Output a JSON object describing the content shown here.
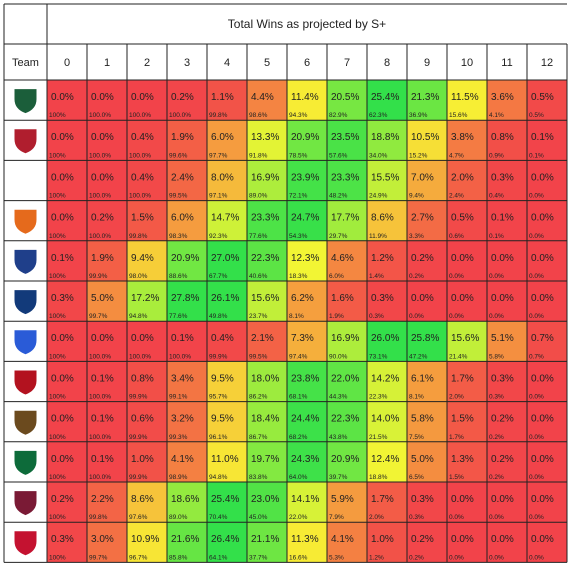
{
  "chart_data": {
    "type": "heatmap",
    "title": "Total Wins as projected by S+",
    "row_header": "Team",
    "columns": [
      "0",
      "1",
      "2",
      "3",
      "4",
      "5",
      "6",
      "7",
      "8",
      "9",
      "10",
      "11",
      "12"
    ],
    "rows": [
      {
        "logo": "ohio-logo",
        "logo_color": "#1b5e3a",
        "pct": [
          "0.0%",
          "0.0%",
          "0.0%",
          "0.2%",
          "1.1%",
          "4.4%",
          "11.4%",
          "20.5%",
          "25.4%",
          "21.3%",
          "11.5%",
          "3.6%",
          "0.5%"
        ],
        "cum": [
          "100%",
          "100.0%",
          "100.0%",
          "100.0%",
          "99.8%",
          "98.6%",
          "94.3%",
          "82.9%",
          "62.3%",
          "36.9%",
          "15.6%",
          "4.1%",
          "0.5%"
        ]
      },
      {
        "logo": "miami-oh-logo",
        "logo_color": "#b01e2e",
        "pct": [
          "0.0%",
          "0.0%",
          "0.4%",
          "1.9%",
          "6.0%",
          "13.3%",
          "20.9%",
          "23.5%",
          "18.8%",
          "10.5%",
          "3.8%",
          "0.8%",
          "0.1%"
        ],
        "cum": [
          "100%",
          "100.0%",
          "100.0%",
          "99.6%",
          "97.7%",
          "91.8%",
          "78.5%",
          "57.6%",
          "34.0%",
          "15.2%",
          "4.7%",
          "0.9%",
          "0.1%"
        ]
      },
      {
        "logo": "",
        "logo_color": "",
        "pct": [
          "0.0%",
          "0.0%",
          "0.4%",
          "2.4%",
          "8.0%",
          "16.9%",
          "23.9%",
          "23.3%",
          "15.5%",
          "7.0%",
          "2.0%",
          "0.3%",
          "0.0%"
        ],
        "cum": [
          "100%",
          "100.0%",
          "100.0%",
          "99.5%",
          "97.1%",
          "89.0%",
          "72.1%",
          "48.2%",
          "24.9%",
          "9.4%",
          "2.4%",
          "0.4%",
          "0.0%"
        ]
      },
      {
        "logo": "bowling-green-logo",
        "logo_color": "#e56a1c",
        "pct": [
          "0.0%",
          "0.2%",
          "1.5%",
          "6.0%",
          "14.7%",
          "23.3%",
          "24.7%",
          "17.7%",
          "8.6%",
          "2.7%",
          "0.5%",
          "0.1%",
          "0.0%"
        ],
        "cum": [
          "100%",
          "100.0%",
          "99.8%",
          "98.3%",
          "92.3%",
          "77.6%",
          "54.3%",
          "29.7%",
          "11.9%",
          "3.3%",
          "0.6%",
          "0.1%",
          "0.0%"
        ]
      },
      {
        "logo": "akron-logo",
        "logo_color": "#1f3f8a",
        "pct": [
          "0.1%",
          "1.9%",
          "9.4%",
          "20.9%",
          "27.0%",
          "22.3%",
          "12.3%",
          "4.6%",
          "1.2%",
          "0.2%",
          "0.0%",
          "0.0%",
          "0.0%"
        ],
        "cum": [
          "100%",
          "99.9%",
          "98.0%",
          "88.6%",
          "67.7%",
          "40.6%",
          "18.3%",
          "6.0%",
          "1.4%",
          "0.2%",
          "0.0%",
          "0.0%",
          "0.0%"
        ]
      },
      {
        "logo": "kent-state-logo",
        "logo_color": "#123a7a",
        "pct": [
          "0.3%",
          "5.0%",
          "17.2%",
          "27.8%",
          "26.1%",
          "15.6%",
          "6.2%",
          "1.6%",
          "0.3%",
          "0.0%",
          "0.0%",
          "0.0%",
          "0.0%"
        ],
        "cum": [
          "100%",
          "99.7%",
          "94.8%",
          "77.6%",
          "49.8%",
          "23.7%",
          "8.1%",
          "1.9%",
          "0.3%",
          "0.0%",
          "0.0%",
          "0.0%",
          "0.0%"
        ]
      },
      {
        "logo": "buffalo-logo",
        "logo_color": "#2a5bd7",
        "pct": [
          "0.0%",
          "0.0%",
          "0.0%",
          "0.1%",
          "0.4%",
          "2.1%",
          "7.3%",
          "16.9%",
          "26.0%",
          "25.8%",
          "15.6%",
          "5.1%",
          "0.7%"
        ],
        "cum": [
          "100%",
          "100.0%",
          "100.0%",
          "100.0%",
          "99.9%",
          "99.5%",
          "97.4%",
          "90.0%",
          "73.1%",
          "47.2%",
          "21.4%",
          "5.8%",
          "0.7%"
        ]
      },
      {
        "logo": "northern-illinois-logo",
        "logo_color": "#b3121f",
        "pct": [
          "0.0%",
          "0.1%",
          "0.8%",
          "3.4%",
          "9.5%",
          "18.0%",
          "23.8%",
          "22.0%",
          "14.2%",
          "6.1%",
          "1.7%",
          "0.3%",
          "0.0%"
        ],
        "cum": [
          "100%",
          "100.0%",
          "99.9%",
          "99.1%",
          "95.7%",
          "86.2%",
          "68.1%",
          "44.3%",
          "22.3%",
          "8.1%",
          "2.0%",
          "0.3%",
          "0.0%"
        ]
      },
      {
        "logo": "western-michigan-logo",
        "logo_color": "#6b4a1e",
        "pct": [
          "0.0%",
          "0.1%",
          "0.6%",
          "3.2%",
          "9.5%",
          "18.4%",
          "24.4%",
          "22.3%",
          "14.0%",
          "5.8%",
          "1.5%",
          "0.2%",
          "0.0%"
        ],
        "cum": [
          "100%",
          "100.0%",
          "99.9%",
          "99.3%",
          "96.1%",
          "86.7%",
          "68.2%",
          "43.8%",
          "21.5%",
          "7.5%",
          "1.7%",
          "0.2%",
          "0.0%"
        ]
      },
      {
        "logo": "eastern-michigan-logo",
        "logo_color": "#0d6b3a",
        "pct": [
          "0.0%",
          "0.1%",
          "1.0%",
          "4.1%",
          "11.0%",
          "19.7%",
          "24.3%",
          "20.9%",
          "12.4%",
          "5.0%",
          "1.3%",
          "0.2%",
          "0.0%"
        ],
        "cum": [
          "100%",
          "100.0%",
          "99.9%",
          "98.9%",
          "94.8%",
          "83.8%",
          "64.0%",
          "39.7%",
          "18.8%",
          "6.5%",
          "1.5%",
          "0.2%",
          "0.0%"
        ]
      },
      {
        "logo": "central-michigan-logo",
        "logo_color": "#7a1a35",
        "pct": [
          "0.2%",
          "2.2%",
          "8.6%",
          "18.6%",
          "25.4%",
          "23.0%",
          "14.1%",
          "5.9%",
          "1.7%",
          "0.3%",
          "0.0%",
          "0.0%",
          "0.0%"
        ],
        "cum": [
          "100%",
          "99.8%",
          "97.6%",
          "89.0%",
          "70.4%",
          "45.0%",
          "22.0%",
          "7.9%",
          "2.0%",
          "0.3%",
          "0.0%",
          "0.0%",
          "0.0%"
        ]
      },
      {
        "logo": "ball-state-logo",
        "logo_color": "#c41230",
        "pct": [
          "0.3%",
          "3.0%",
          "10.9%",
          "21.6%",
          "26.4%",
          "21.1%",
          "11.3%",
          "4.1%",
          "1.0%",
          "0.2%",
          "0.0%",
          "0.0%",
          "0.0%"
        ],
        "cum": [
          "100%",
          "99.7%",
          "96.7%",
          "85.8%",
          "64.1%",
          "37.7%",
          "16.6%",
          "5.3%",
          "1.2%",
          "0.2%",
          "0.0%",
          "0.0%",
          "0.0%"
        ]
      }
    ],
    "color_scale": {
      "low": "#f2434a",
      "mid": "#f7f533",
      "high": "#33e04a",
      "domain": [
        0,
        12,
        25
      ]
    }
  }
}
